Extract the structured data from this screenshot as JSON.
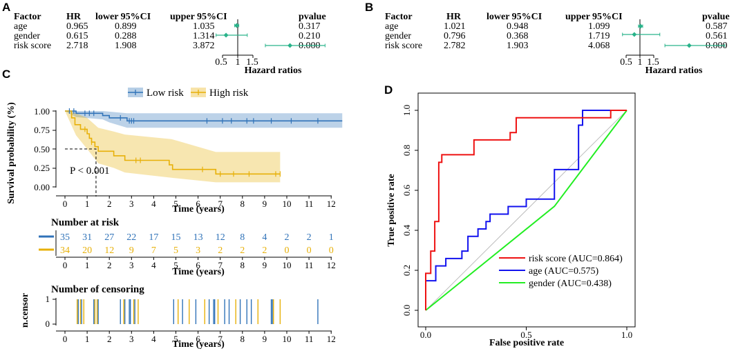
{
  "panel_labels": {
    "a": "A",
    "b": "B",
    "c": "C",
    "d": "D"
  },
  "colors": {
    "low": "#2f72b8",
    "high": "#e7b008",
    "teal": "#29b38a",
    "roc_red": "#ee1111",
    "roc_blue": "#1111ee",
    "roc_green": "#22ee22",
    "diag": "#bdbdbd"
  },
  "chart_data": [
    {
      "type": "table",
      "panel": "A",
      "columns": [
        "Factor",
        "HR",
        "lower 95%CI",
        "upper 95%CI",
        "pvalue"
      ],
      "rows": [
        {
          "factor": "age",
          "hr": "0.965",
          "lower": "0.899",
          "upper": "1.035",
          "p": "0.317"
        },
        {
          "factor": "gender",
          "hr": "0.615",
          "lower": "0.288",
          "upper": "1.314",
          "p": "0.210"
        },
        {
          "factor": "risk score",
          "hr": "2.718",
          "lower": "1.908",
          "upper": "3.872",
          "p": "0.000"
        }
      ],
      "forest": {
        "hr": [
          0.965,
          0.615,
          2.718
        ],
        "lo": [
          0.899,
          0.288,
          1.908
        ],
        "hi": [
          1.035,
          1.314,
          3.872
        ]
      },
      "xlabel": "Hazard ratios",
      "xticks": [
        "0.5",
        "1",
        "1.5"
      ]
    },
    {
      "type": "table",
      "panel": "B",
      "columns": [
        "Factor",
        "HR",
        "lower 95%CI",
        "upper 95%CI",
        "pvalue"
      ],
      "rows": [
        {
          "factor": "age",
          "hr": "1.021",
          "lower": "0.948",
          "upper": "1.099",
          "p": "0.587"
        },
        {
          "factor": "gender",
          "hr": "0.796",
          "lower": "0.368",
          "upper": "1.719",
          "p": "0.561"
        },
        {
          "factor": "risk score",
          "hr": "2.782",
          "lower": "1.903",
          "upper": "4.068",
          "p": "0.000"
        }
      ],
      "forest": {
        "hr": [
          1.021,
          0.796,
          2.782
        ],
        "lo": [
          0.948,
          0.368,
          1.903
        ],
        "hi": [
          1.099,
          1.719,
          4.068
        ]
      },
      "xlabel": "Hazard ratios",
      "xticks": [
        "0.5",
        "1",
        "1.5"
      ]
    },
    {
      "type": "line",
      "panel": "C",
      "legend": [
        "Low risk",
        "High risk"
      ],
      "ylabel": "Survival probability (%)",
      "xlabel": "Time (years)",
      "yticks": [
        "0.00",
        "0.25",
        "0.50",
        "0.75",
        "1.00"
      ],
      "xticks": [
        "0",
        "1",
        "2",
        "3",
        "4",
        "5",
        "6",
        "7",
        "8",
        "9",
        "10",
        "11",
        "12"
      ],
      "annotation": "P < 0.001",
      "median_survival_high": 1.4,
      "low_curve": [
        [
          0,
          1.0
        ],
        [
          0.5,
          1.0
        ],
        [
          0.5,
          0.97
        ],
        [
          1.7,
          0.97
        ],
        [
          1.7,
          0.94
        ],
        [
          2.0,
          0.94
        ],
        [
          2.0,
          0.91
        ],
        [
          2.8,
          0.91
        ],
        [
          2.8,
          0.87
        ],
        [
          12.5,
          0.87
        ]
      ],
      "low_ci": {
        "upper": [
          [
            0,
            1.0
          ],
          [
            1.7,
            1.0
          ],
          [
            2.8,
            0.97
          ],
          [
            12.5,
            0.97
          ]
        ],
        "lower": [
          [
            0,
            1.0
          ],
          [
            0.5,
            0.92
          ],
          [
            1.7,
            0.89
          ],
          [
            2.0,
            0.85
          ],
          [
            2.8,
            0.78
          ],
          [
            12.5,
            0.78
          ]
        ]
      },
      "low_censor": [
        0.2,
        0.4,
        0.9,
        1.1,
        1.3,
        2.5,
        2.9,
        3.0,
        3.1,
        6.4,
        7.1,
        7.5,
        8.2,
        8.5,
        9.3,
        10.2,
        11.4
      ],
      "high_curve": [
        [
          0,
          1.0
        ],
        [
          0.3,
          0.91
        ],
        [
          0.45,
          0.82
        ],
        [
          0.7,
          0.76
        ],
        [
          1.0,
          0.7
        ],
        [
          1.1,
          0.64
        ],
        [
          1.2,
          0.59
        ],
        [
          1.35,
          0.53
        ],
        [
          1.5,
          0.47
        ],
        [
          2.2,
          0.41
        ],
        [
          2.7,
          0.35
        ],
        [
          4.7,
          0.29
        ],
        [
          4.85,
          0.23
        ],
        [
          6.8,
          0.17
        ],
        [
          9.7,
          0.17
        ]
      ],
      "high_ci": {
        "upper": [
          [
            0,
            1.0
          ],
          [
            0.5,
            0.97
          ],
          [
            1.0,
            0.91
          ],
          [
            1.5,
            0.78
          ],
          [
            2.2,
            0.73
          ],
          [
            2.7,
            0.69
          ],
          [
            4.8,
            0.63
          ],
          [
            6.8,
            0.46
          ],
          [
            9.7,
            0.46
          ]
        ],
        "lower": [
          [
            0,
            1.0
          ],
          [
            0.5,
            0.68
          ],
          [
            1.0,
            0.5
          ],
          [
            1.5,
            0.31
          ],
          [
            2.2,
            0.25
          ],
          [
            2.7,
            0.19
          ],
          [
            4.8,
            0.12
          ],
          [
            6.8,
            0.06
          ],
          [
            9.7,
            0.06
          ]
        ]
      },
      "high_censor": [
        0.9,
        1.2,
        3.2,
        3.4,
        6.2,
        7.0,
        7.6,
        8.3,
        9.5,
        9.7
      ],
      "risk_table": {
        "title": "Number at risk",
        "low": [
          "35",
          "31",
          "27",
          "22",
          "17",
          "15",
          "13",
          "12",
          "8",
          "4",
          "2",
          "2",
          "1"
        ],
        "high": [
          "34",
          "20",
          "12",
          "9",
          "7",
          "5",
          "3",
          "2",
          "2",
          "2",
          "0",
          "0",
          "0"
        ]
      },
      "censor_plot": {
        "title": "Number of censoring",
        "ylabel": "n.censor",
        "yticks": [
          "0",
          "1"
        ],
        "low_events": [
          0.6,
          0.75,
          1.3,
          1.5,
          2.5,
          2.7,
          2.9,
          2.95,
          3.15,
          4.9,
          5.3,
          5.9,
          6.5,
          6.7,
          6.75,
          7.2,
          7.4,
          7.9,
          8.2,
          8.4,
          9.3,
          9.35,
          11.4
        ],
        "high_events": [
          0.55,
          0.7,
          0.85,
          1.35,
          1.45,
          2.65,
          3.1,
          3.3,
          5.1,
          5.6,
          6.3,
          6.9,
          7.7,
          8.7,
          9.4,
          9.7
        ]
      }
    },
    {
      "type": "line",
      "panel": "D",
      "xlabel": "False positive rate",
      "ylabel": "True positive rate",
      "xlim": [
        0,
        1
      ],
      "ylim": [
        0,
        1
      ],
      "xticks": [
        "0.0",
        "0.5",
        "1.0"
      ],
      "yticks": [
        "0.0",
        "0.2",
        "0.4",
        "0.6",
        "0.8",
        "1.0"
      ],
      "series": [
        {
          "name": "risk score (AUC=0.864)",
          "color_key": "roc_red",
          "points": [
            [
              0,
              0
            ],
            [
              0,
              0.185
            ],
            [
              0.025,
              0.185
            ],
            [
              0.025,
              0.296
            ],
            [
              0.045,
              0.296
            ],
            [
              0.045,
              0.444
            ],
            [
              0.065,
              0.444
            ],
            [
              0.065,
              0.74
            ],
            [
              0.08,
              0.74
            ],
            [
              0.08,
              0.778
            ],
            [
              0.24,
              0.778
            ],
            [
              0.24,
              0.852
            ],
            [
              0.42,
              0.852
            ],
            [
              0.42,
              0.889
            ],
            [
              0.45,
              0.889
            ],
            [
              0.45,
              0.963
            ],
            [
              0.92,
              0.963
            ],
            [
              0.92,
              1.0
            ],
            [
              1,
              1
            ]
          ]
        },
        {
          "name": "age (AUC=0.575)",
          "color_key": "roc_blue",
          "points": [
            [
              0,
              0
            ],
            [
              0,
              0.148
            ],
            [
              0.05,
              0.148
            ],
            [
              0.05,
              0.222
            ],
            [
              0.1,
              0.222
            ],
            [
              0.1,
              0.259
            ],
            [
              0.18,
              0.259
            ],
            [
              0.18,
              0.296
            ],
            [
              0.21,
              0.296
            ],
            [
              0.21,
              0.37
            ],
            [
              0.26,
              0.37
            ],
            [
              0.26,
              0.407
            ],
            [
              0.3,
              0.407
            ],
            [
              0.3,
              0.444
            ],
            [
              0.32,
              0.444
            ],
            [
              0.32,
              0.481
            ],
            [
              0.41,
              0.481
            ],
            [
              0.41,
              0.519
            ],
            [
              0.5,
              0.519
            ],
            [
              0.5,
              0.556
            ],
            [
              0.64,
              0.556
            ],
            [
              0.64,
              0.704
            ],
            [
              0.76,
              0.704
            ],
            [
              0.76,
              0.926
            ],
            [
              0.78,
              0.926
            ],
            [
              0.78,
              1.0
            ],
            [
              1,
              1
            ]
          ]
        },
        {
          "name": "gender (AUC=0.438)",
          "color_key": "roc_green",
          "points": [
            [
              0,
              0
            ],
            [
              0.64,
              0.52
            ],
            [
              1,
              1
            ]
          ]
        }
      ]
    }
  ]
}
